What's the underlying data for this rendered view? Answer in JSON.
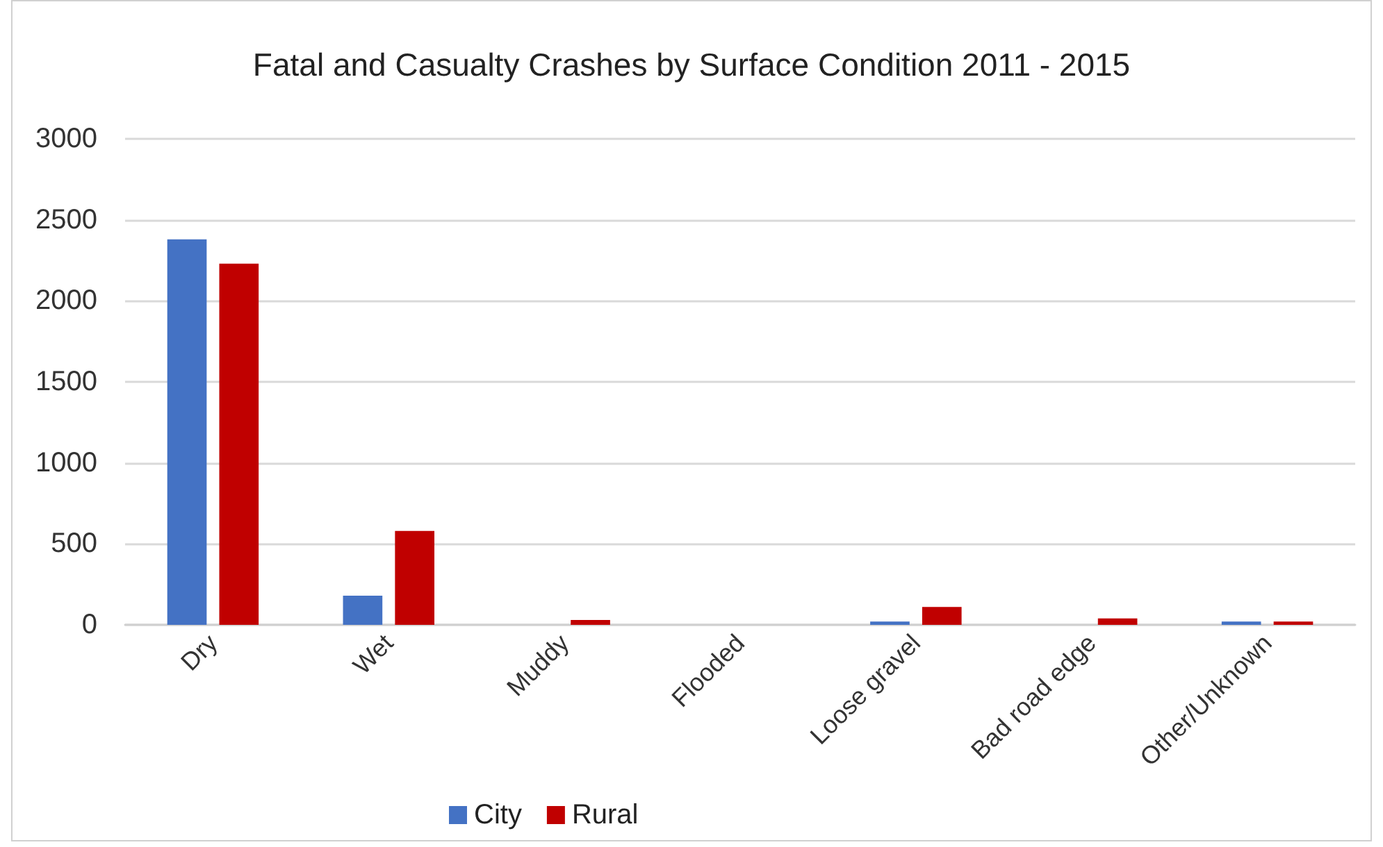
{
  "chart_data": {
    "type": "bar",
    "title": "Fatal and Casualty Crashes by Surface Condition 2011 - 2015",
    "categories": [
      "Dry",
      "Wet",
      "Muddy",
      "Flooded",
      "Loose gravel",
      "Bad road edge",
      "Other/Unknown"
    ],
    "series": [
      {
        "name": "City",
        "color": "#4472c4",
        "values": [
          2380,
          180,
          0,
          0,
          20,
          0,
          20
        ]
      },
      {
        "name": "Rural",
        "color": "#c00000",
        "values": [
          2230,
          580,
          30,
          0,
          110,
          40,
          20
        ]
      }
    ],
    "ylim": [
      0,
      3000
    ],
    "yticks": [
      0,
      500,
      1000,
      1500,
      2000,
      2500,
      3000
    ],
    "grid": "y",
    "legend": "bottom"
  }
}
